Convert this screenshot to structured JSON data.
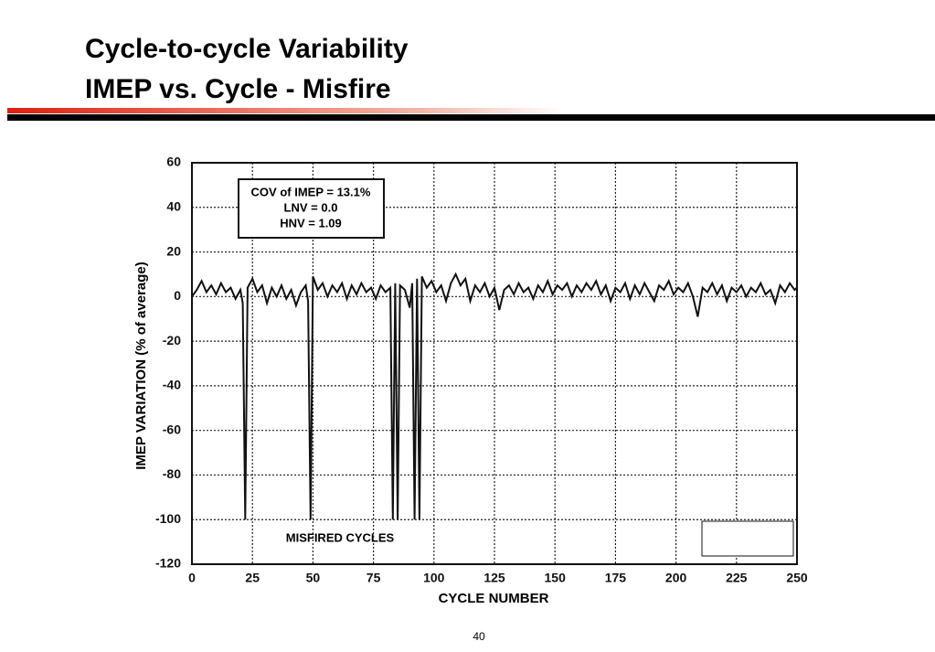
{
  "header": {
    "title_line1": "Cycle-to-cycle Variability",
    "title_line2": "IMEP vs. Cycle - Misfire"
  },
  "page_number": "40",
  "chart_data": {
    "type": "line",
    "xlabel": "CYCLE NUMBER",
    "ylabel": "IMEP VARIATION (% of average)",
    "annotations": [
      "COV of IMEP = 13.1%",
      "LNV = 0.0",
      "HNV = 1.09",
      "MISFIRED CYCLES"
    ],
    "color": "#111111",
    "grid": true,
    "xlim": [
      0,
      250
    ],
    "ylim": [
      -120,
      60
    ],
    "xticks": [
      0,
      25,
      50,
      75,
      100,
      125,
      150,
      175,
      200,
      225,
      250
    ],
    "yticks": [
      -120,
      -100,
      -80,
      -60,
      -40,
      -20,
      0,
      20,
      40,
      60
    ],
    "x": [
      0,
      2,
      4,
      6,
      8,
      10,
      12,
      14,
      16,
      18,
      20,
      21,
      22,
      23,
      25,
      27,
      29,
      31,
      33,
      35,
      37,
      39,
      41,
      43,
      45,
      47,
      48,
      49,
      50,
      52,
      54,
      56,
      58,
      60,
      62,
      64,
      66,
      68,
      70,
      72,
      74,
      76,
      78,
      80,
      82,
      83,
      84,
      85,
      86,
      88,
      90,
      91,
      92,
      93,
      94,
      95,
      97,
      99,
      101,
      103,
      105,
      107,
      109,
      111,
      113,
      115,
      117,
      119,
      121,
      123,
      125,
      127,
      129,
      131,
      133,
      135,
      137,
      139,
      141,
      143,
      145,
      147,
      149,
      151,
      153,
      155,
      157,
      159,
      161,
      163,
      165,
      167,
      169,
      171,
      173,
      175,
      177,
      179,
      181,
      183,
      185,
      187,
      189,
      191,
      193,
      195,
      197,
      199,
      201,
      203,
      205,
      207,
      209,
      211,
      213,
      215,
      217,
      219,
      221,
      223,
      225,
      227,
      229,
      231,
      233,
      235,
      237,
      239,
      241,
      243,
      245,
      247,
      249,
      250
    ],
    "values": [
      0,
      3,
      7,
      2,
      5,
      1,
      6,
      2,
      4,
      -1,
      3,
      -3,
      -100,
      4,
      8,
      2,
      5,
      -3,
      4,
      0,
      5,
      -1,
      3,
      -4,
      2,
      5,
      -2,
      -100,
      9,
      3,
      6,
      0,
      5,
      2,
      6,
      -1,
      5,
      1,
      6,
      2,
      4,
      -1,
      5,
      2,
      4,
      -100,
      6,
      -100,
      5,
      3,
      -5,
      6,
      -100,
      8,
      -100,
      9,
      4,
      7,
      2,
      5,
      -2,
      6,
      10,
      5,
      8,
      -2,
      5,
      2,
      6,
      0,
      4,
      -6,
      3,
      5,
      1,
      6,
      2,
      4,
      -1,
      5,
      2,
      7,
      1,
      5,
      3,
      6,
      0,
      5,
      2,
      6,
      3,
      7,
      1,
      5,
      -2,
      4,
      2,
      6,
      -1,
      5,
      1,
      6,
      2,
      -2,
      5,
      3,
      7,
      1,
      4,
      2,
      6,
      0,
      -9,
      4,
      2,
      6,
      1,
      5,
      -2,
      4,
      2,
      5,
      0,
      4,
      2,
      6,
      1,
      3,
      -3,
      5,
      2,
      6,
      3,
      4
    ]
  }
}
